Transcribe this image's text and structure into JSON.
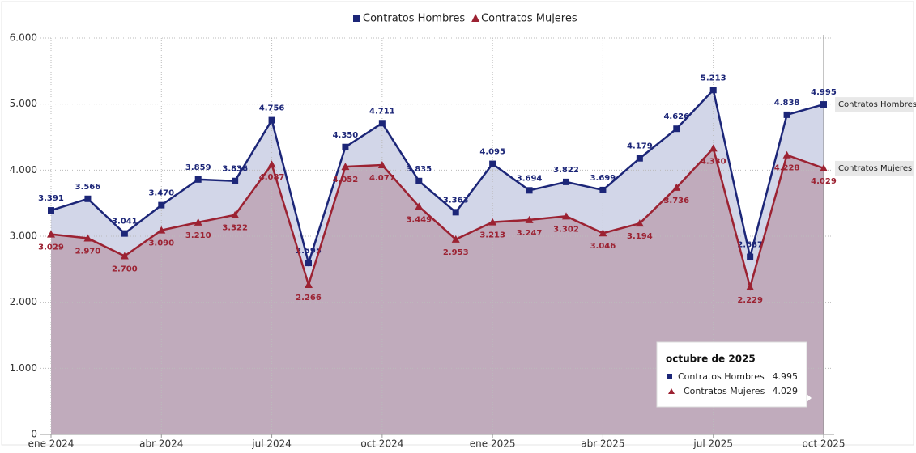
{
  "chart_data": {
    "type": "area",
    "categories": [
      "ene 2024",
      null,
      null,
      "abr 2024",
      null,
      null,
      "jul 2024",
      null,
      null,
      "oct 2024",
      null,
      null,
      "ene 2025",
      null,
      null,
      "abr 2025",
      null,
      null,
      "jul 2025",
      null,
      null,
      "oct 2025"
    ],
    "series": [
      {
        "name": "Contratos Hombres",
        "color": "#1c2678",
        "fill": "#cdd1e5",
        "values": [
          3391,
          3566,
          3041,
          3470,
          3859,
          3836,
          4756,
          2595,
          4350,
          4711,
          3835,
          3363,
          4095,
          3694,
          3822,
          3699,
          4179,
          4626,
          5213,
          2687,
          4838,
          4995
        ],
        "value_labels": [
          "3.391",
          "3.566",
          "3.041",
          "3.470",
          "3.859",
          "3.836",
          "4.756",
          "2.595",
          "4.350",
          "4.711",
          "3.835",
          "3.363",
          "4.095",
          "3.694",
          "3.822",
          "3.699",
          "4.179",
          "4.626",
          "5.213",
          "2.687",
          "4.838",
          "4.995"
        ]
      },
      {
        "name": "Contratos Mujeres",
        "color": "#9c2232",
        "fill": "#bfa9b9",
        "values": [
          3029,
          2970,
          2700,
          3090,
          3210,
          3322,
          4087,
          2266,
          4052,
          4077,
          3449,
          2953,
          3213,
          3247,
          3302,
          3046,
          3194,
          3736,
          4330,
          2229,
          4228,
          4029
        ],
        "value_labels": [
          "3.029",
          "2.970",
          "2.700",
          "3.090",
          "3.210",
          "3.322",
          "4.087",
          "2.266",
          "4.052",
          "4.077",
          "3.449",
          "2.953",
          "3.213",
          "3.247",
          "3.302",
          "3.046",
          "3.194",
          "3.736",
          "4.330",
          "2.229",
          "4.228",
          "4.029"
        ]
      }
    ],
    "ylim": [
      0,
      6000
    ],
    "yticks": [
      0,
      {
        "value": 1000,
        "label": "1.000"
      },
      {
        "value": 2000,
        "label": "2.000"
      },
      {
        "value": 3000,
        "label": "3.000"
      },
      {
        "value": 4000,
        "label": "4.000"
      },
      {
        "value": 5000,
        "label": "5.000"
      },
      {
        "value": 6000,
        "label": "6.000"
      }
    ],
    "grid": true,
    "legend": "top",
    "tooltip": {
      "title": "octubre de 2025"
    }
  }
}
